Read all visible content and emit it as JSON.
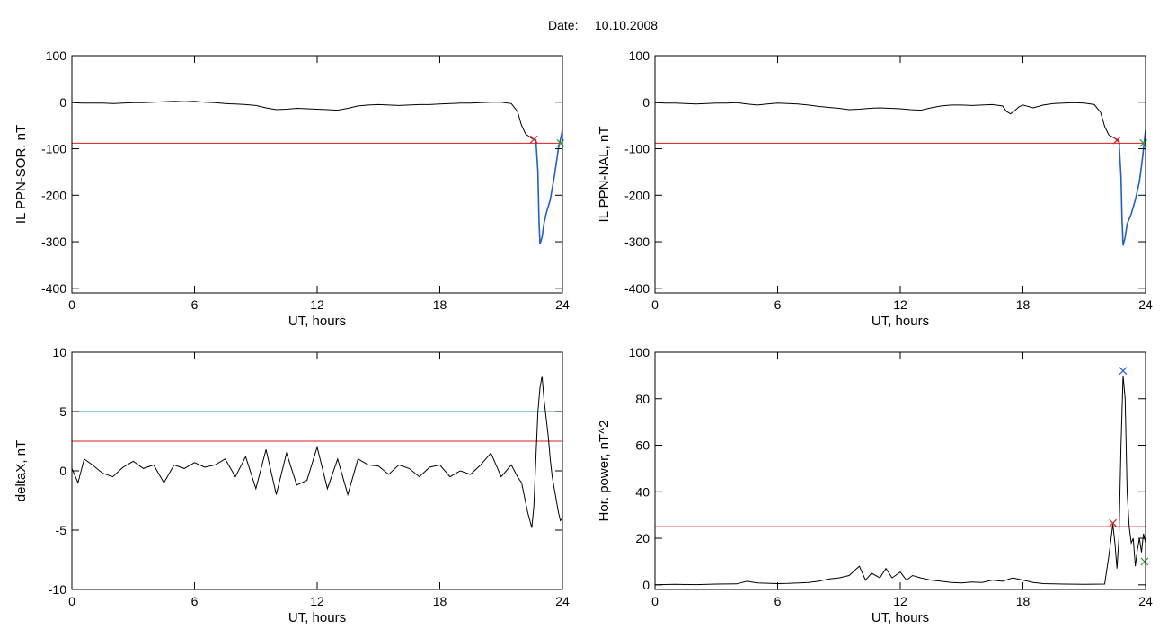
{
  "header": {
    "date_label": "Date:",
    "date_value": "10.10.2008"
  },
  "colors": {
    "trace": "#000000",
    "threshold": "#e31a1c",
    "threshold2": "#1f9a9a",
    "event": "#1f5fd0",
    "start_marker": "#e31a1c",
    "end_marker": "#2ca02c",
    "peak_marker": "#1f5fd0"
  },
  "chart_data": [
    {
      "type": "line",
      "xlabel": "UT, hours",
      "ylabel": "IL PPN-SOR, nT",
      "xlim": [
        0,
        24
      ],
      "ylim": [
        -410,
        100
      ],
      "xticks": [
        0,
        6,
        12,
        18,
        24
      ],
      "yticks": [
        100,
        0,
        -100,
        -200,
        -300,
        -400
      ],
      "grid": false,
      "thresholds": [
        {
          "y": -88,
          "color": "#e31a1c"
        }
      ],
      "series": [
        {
          "points": [
            [
              0,
              -1
            ],
            [
              0.5,
              -2
            ],
            [
              1,
              -2
            ],
            [
              1.5,
              -2
            ],
            [
              2,
              -3
            ],
            [
              2.5,
              -2
            ],
            [
              3,
              -1
            ],
            [
              3.5,
              -1
            ],
            [
              4,
              0
            ],
            [
              4.5,
              1
            ],
            [
              5,
              2
            ],
            [
              5.5,
              1
            ],
            [
              6,
              2
            ],
            [
              6.5,
              0
            ],
            [
              7,
              -1
            ],
            [
              7.5,
              -3
            ],
            [
              8,
              -4
            ],
            [
              8.5,
              -5
            ],
            [
              9,
              -7
            ],
            [
              9.5,
              -12
            ],
            [
              10,
              -16
            ],
            [
              10.5,
              -15
            ],
            [
              11,
              -13
            ],
            [
              11.5,
              -14
            ],
            [
              12,
              -15
            ],
            [
              12.5,
              -16
            ],
            [
              13,
              -17
            ],
            [
              13.5,
              -13
            ],
            [
              14,
              -8
            ],
            [
              14.5,
              -6
            ],
            [
              15,
              -5
            ],
            [
              15.5,
              -6
            ],
            [
              16,
              -7
            ],
            [
              16.5,
              -6
            ],
            [
              17,
              -5
            ],
            [
              17.5,
              -5
            ],
            [
              18,
              -4
            ],
            [
              18.5,
              -3
            ],
            [
              19,
              -2
            ],
            [
              19.5,
              -2
            ],
            [
              20,
              -1
            ],
            [
              20.5,
              0
            ],
            [
              21,
              0
            ],
            [
              21.5,
              -3
            ],
            [
              21.8,
              -20
            ],
            [
              22,
              -50
            ],
            [
              22.2,
              -68
            ],
            [
              22.5,
              -78
            ],
            [
              22.7,
              -80
            ]
          ]
        }
      ],
      "event_segment": {
        "color": "#1f5fd0",
        "points": [
          [
            22.7,
            -80
          ],
          [
            22.8,
            -150
          ],
          [
            22.85,
            -250
          ],
          [
            22.9,
            -305
          ],
          [
            23.0,
            -290
          ],
          [
            23.1,
            -260
          ],
          [
            23.2,
            -240
          ],
          [
            23.4,
            -210
          ],
          [
            23.6,
            -160
          ],
          [
            23.8,
            -100
          ],
          [
            24,
            -60
          ]
        ]
      },
      "markers": [
        {
          "x": 22.6,
          "y": -80,
          "color": "#e31a1c"
        },
        {
          "x": 23.9,
          "y": -88,
          "color": "#2ca02c"
        }
      ]
    },
    {
      "type": "line",
      "xlabel": "UT, hours",
      "ylabel": "IL PPN-NAL, nT",
      "xlim": [
        0,
        24
      ],
      "ylim": [
        -410,
        100
      ],
      "xticks": [
        0,
        6,
        12,
        18,
        24
      ],
      "yticks": [
        100,
        0,
        -100,
        -200,
        -300,
        -400
      ],
      "grid": false,
      "thresholds": [
        {
          "y": -88,
          "color": "#e31a1c"
        }
      ],
      "series": [
        {
          "points": [
            [
              0,
              -1
            ],
            [
              0.5,
              -2
            ],
            [
              1,
              -2
            ],
            [
              1.5,
              -3
            ],
            [
              2,
              -4
            ],
            [
              2.5,
              -3
            ],
            [
              3,
              -2
            ],
            [
              3.5,
              -2
            ],
            [
              4,
              -1
            ],
            [
              4.5,
              -4
            ],
            [
              5,
              -6
            ],
            [
              5.5,
              -4
            ],
            [
              6,
              -2
            ],
            [
              6.5,
              -3
            ],
            [
              7,
              -4
            ],
            [
              7.5,
              -6
            ],
            [
              8,
              -9
            ],
            [
              8.5,
              -11
            ],
            [
              9,
              -13
            ],
            [
              9.5,
              -16
            ],
            [
              10,
              -15
            ],
            [
              10.5,
              -13
            ],
            [
              11,
              -12
            ],
            [
              11.5,
              -13
            ],
            [
              12,
              -14
            ],
            [
              12.5,
              -16
            ],
            [
              13,
              -17
            ],
            [
              13.5,
              -12
            ],
            [
              14,
              -8
            ],
            [
              14.5,
              -6
            ],
            [
              15,
              -6
            ],
            [
              15.5,
              -7
            ],
            [
              16,
              -6
            ],
            [
              16.5,
              -5
            ],
            [
              17,
              -8
            ],
            [
              17.2,
              -20
            ],
            [
              17.4,
              -25
            ],
            [
              17.6,
              -18
            ],
            [
              17.8,
              -10
            ],
            [
              18,
              -6
            ],
            [
              18.5,
              -12
            ],
            [
              19,
              -6
            ],
            [
              19.5,
              -3
            ],
            [
              20,
              -2
            ],
            [
              20.5,
              -1
            ],
            [
              21,
              -2
            ],
            [
              21.5,
              -5
            ],
            [
              21.8,
              -22
            ],
            [
              22,
              -52
            ],
            [
              22.2,
              -70
            ],
            [
              22.5,
              -78
            ],
            [
              22.7,
              -82
            ]
          ]
        }
      ],
      "event_segment": {
        "color": "#1f5fd0",
        "points": [
          [
            22.7,
            -82
          ],
          [
            22.8,
            -160
          ],
          [
            22.85,
            -250
          ],
          [
            22.9,
            -308
          ],
          [
            23.0,
            -290
          ],
          [
            23.1,
            -262
          ],
          [
            23.3,
            -240
          ],
          [
            23.5,
            -210
          ],
          [
            23.7,
            -170
          ],
          [
            23.85,
            -120
          ],
          [
            24,
            -60
          ]
        ]
      },
      "markers": [
        {
          "x": 22.6,
          "y": -82,
          "color": "#e31a1c"
        },
        {
          "x": 23.9,
          "y": -88,
          "color": "#2ca02c"
        }
      ]
    },
    {
      "type": "line",
      "xlabel": "UT, hours",
      "ylabel": "deltaX, nT",
      "xlim": [
        0,
        24
      ],
      "ylim": [
        -10,
        10
      ],
      "xticks": [
        0,
        6,
        12,
        18,
        24
      ],
      "yticks": [
        10,
        5,
        0,
        -5,
        -10
      ],
      "grid": false,
      "thresholds": [
        {
          "y": 5,
          "color": "#1f9a9a"
        },
        {
          "y": 2.5,
          "color": "#e31a1c"
        }
      ],
      "series": [
        {
          "points": [
            [
              0,
              0.2
            ],
            [
              0.3,
              -1.0
            ],
            [
              0.6,
              1.0
            ],
            [
              1,
              0.5
            ],
            [
              1.5,
              -0.2
            ],
            [
              2,
              -0.5
            ],
            [
              2.5,
              0.3
            ],
            [
              3,
              0.8
            ],
            [
              3.5,
              0.2
            ],
            [
              4,
              0.5
            ],
            [
              4.5,
              -1.0
            ],
            [
              5,
              0.5
            ],
            [
              5.5,
              0.2
            ],
            [
              6,
              0.7
            ],
            [
              6.5,
              0.3
            ],
            [
              7,
              0.5
            ],
            [
              7.5,
              1.0
            ],
            [
              8,
              -0.5
            ],
            [
              8.5,
              1.2
            ],
            [
              9,
              -1.5
            ],
            [
              9.5,
              1.8
            ],
            [
              10,
              -2.0
            ],
            [
              10.5,
              1.5
            ],
            [
              11,
              -1.2
            ],
            [
              11.5,
              -0.8
            ],
            [
              12,
              2.0
            ],
            [
              12.5,
              -1.5
            ],
            [
              13,
              1.0
            ],
            [
              13.5,
              -2.0
            ],
            [
              14,
              1.0
            ],
            [
              14.5,
              0.5
            ],
            [
              15,
              0.4
            ],
            [
              15.5,
              -0.3
            ],
            [
              16,
              0.5
            ],
            [
              16.5,
              0.2
            ],
            [
              17,
              -0.5
            ],
            [
              17.5,
              0.3
            ],
            [
              18,
              0.5
            ],
            [
              18.5,
              -0.5
            ],
            [
              19,
              0
            ],
            [
              19.5,
              -0.3
            ],
            [
              20,
              0.5
            ],
            [
              20.5,
              1.5
            ],
            [
              21,
              -0.5
            ],
            [
              21.5,
              0.5
            ],
            [
              21.8,
              -0.5
            ],
            [
              22,
              -1.0
            ],
            [
              22.3,
              -3.5
            ],
            [
              22.5,
              -4.8
            ],
            [
              22.6,
              -3.0
            ],
            [
              22.7,
              1.0
            ],
            [
              22.8,
              5.0
            ],
            [
              22.9,
              7.0
            ],
            [
              23.0,
              8.0
            ],
            [
              23.1,
              6.0
            ],
            [
              23.2,
              4.5
            ],
            [
              23.3,
              3.0
            ],
            [
              23.4,
              1.0
            ],
            [
              23.5,
              -0.5
            ],
            [
              23.6,
              -1.5
            ],
            [
              23.7,
              -2.5
            ],
            [
              23.8,
              -3.5
            ],
            [
              23.9,
              -4.2
            ],
            [
              24,
              -4.0
            ]
          ]
        }
      ],
      "markers": []
    },
    {
      "type": "line",
      "xlabel": "UT, hours",
      "ylabel": "Hor. power, nT^2",
      "xlim": [
        0,
        24
      ],
      "ylim": [
        -2,
        100
      ],
      "xticks": [
        0,
        6,
        12,
        18,
        24
      ],
      "yticks": [
        100,
        80,
        60,
        40,
        20,
        0
      ],
      "grid": false,
      "thresholds": [
        {
          "y": 25,
          "color": "#e31a1c"
        }
      ],
      "series": [
        {
          "points": [
            [
              0,
              0
            ],
            [
              1,
              0.2
            ],
            [
              2,
              0.1
            ],
            [
              3,
              0.3
            ],
            [
              4,
              0.4
            ],
            [
              4.5,
              1.5
            ],
            [
              5,
              0.8
            ],
            [
              6,
              0.5
            ],
            [
              6.5,
              0.6
            ],
            [
              7,
              0.8
            ],
            [
              7.5,
              1.0
            ],
            [
              8,
              1.5
            ],
            [
              8.5,
              2.5
            ],
            [
              9,
              3.0
            ],
            [
              9.5,
              4.0
            ],
            [
              10,
              8.0
            ],
            [
              10.3,
              2.0
            ],
            [
              10.6,
              5.0
            ],
            [
              11,
              3.0
            ],
            [
              11.3,
              7.0
            ],
            [
              11.6,
              3.0
            ],
            [
              12,
              5.5
            ],
            [
              12.3,
              2.0
            ],
            [
              12.6,
              4.0
            ],
            [
              13,
              3.0
            ],
            [
              13.5,
              2.0
            ],
            [
              14,
              1.5
            ],
            [
              14.5,
              1.0
            ],
            [
              15,
              0.8
            ],
            [
              15.5,
              1.2
            ],
            [
              16,
              1.0
            ],
            [
              16.5,
              2.0
            ],
            [
              17,
              1.5
            ],
            [
              17.5,
              3.0
            ],
            [
              18,
              2.0
            ],
            [
              18.5,
              1.0
            ],
            [
              19,
              0.5
            ],
            [
              20,
              0.3
            ],
            [
              21,
              0.2
            ],
            [
              22,
              0.3
            ],
            [
              22.2,
              12
            ],
            [
              22.4,
              26
            ],
            [
              22.5,
              18
            ],
            [
              22.6,
              7
            ],
            [
              22.7,
              20
            ],
            [
              22.8,
              60
            ],
            [
              22.9,
              90
            ],
            [
              23.0,
              80
            ],
            [
              23.1,
              40
            ],
            [
              23.2,
              25
            ],
            [
              23.3,
              18
            ],
            [
              23.4,
              20
            ],
            [
              23.5,
              8
            ],
            [
              23.6,
              15
            ],
            [
              23.7,
              20
            ],
            [
              23.8,
              14
            ],
            [
              23.9,
              22
            ],
            [
              24,
              18
            ]
          ]
        }
      ],
      "markers": [
        {
          "x": 22.4,
          "y": 26.5,
          "color": "#e31a1c"
        },
        {
          "x": 22.9,
          "y": 92,
          "color": "#1f5fd0"
        },
        {
          "x": 23.95,
          "y": 10,
          "color": "#2ca02c"
        }
      ]
    }
  ]
}
